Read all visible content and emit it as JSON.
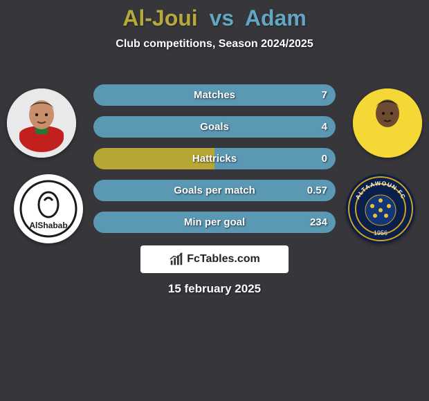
{
  "background_color": "#37373b",
  "text_color": "#ffffff",
  "title": {
    "player1": "Al-Joui",
    "vs": "vs",
    "player2": "Adam",
    "p1_color": "#b8a93b",
    "p2_color": "#62a6c4",
    "fontsize": 32
  },
  "subtitle": {
    "text": "Club competitions, Season 2024/2025",
    "fontsize": 16
  },
  "players": {
    "left": {
      "skin": "#c98f6a",
      "hair": "#2b2b2b",
      "shirt": "#c21f1f",
      "collar": "#1e7a34"
    },
    "right": {
      "skin": "#6e4a2f",
      "hair": "#1a1a1a",
      "shirt": "#f4d936",
      "bg": "#f4d936"
    }
  },
  "clubs": {
    "left": {
      "bg": "#ffffff",
      "ring": "#1a1a1a",
      "label": "AlShabab",
      "label_color": "#1a1a1a"
    },
    "right": {
      "bg": "#0b1f4b",
      "ring": "#d6a21c",
      "ball": "#11377a",
      "dots": "#f2c233",
      "label": "ALTAAWOUN FC",
      "year": "1956",
      "label_color": "#f1f1f1"
    }
  },
  "bars": {
    "track_bg": "rgba(255,255,255,.06)",
    "left_color": "#b7a534",
    "right_color": "#5a98b4",
    "label_fontsize": 15,
    "items": [
      {
        "label": "Matches",
        "left_val": "",
        "right_val": "7",
        "left_pct": 0,
        "right_pct": 100
      },
      {
        "label": "Goals",
        "left_val": "",
        "right_val": "4",
        "left_pct": 0,
        "right_pct": 100
      },
      {
        "label": "Hattricks",
        "left_val": "",
        "right_val": "0",
        "left_pct": 50,
        "right_pct": 50
      },
      {
        "label": "Goals per match",
        "left_val": "",
        "right_val": "0.57",
        "left_pct": 0,
        "right_pct": 100
      },
      {
        "label": "Min per goal",
        "left_val": "",
        "right_val": "234",
        "left_pct": 0,
        "right_pct": 100
      }
    ]
  },
  "watermark": {
    "text": "FcTables.com",
    "icon_color": "#333333",
    "bg": "#ffffff"
  },
  "date": {
    "text": "15 february 2025",
    "fontsize": 17
  }
}
